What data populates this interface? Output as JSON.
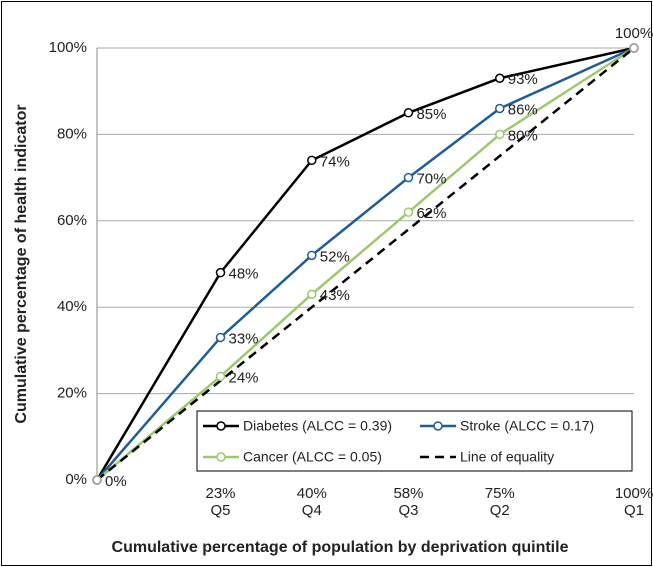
{
  "chart_data": {
    "type": "line",
    "y_label": "Cumulative percentage of health indicator",
    "x_label": "Cumulative percentage of population by deprivation quintile",
    "x": [
      0,
      23,
      40,
      58,
      75,
      100
    ],
    "xlim": [
      0,
      100
    ],
    "xticks": [
      {
        "value": 23,
        "label": "23%"
      },
      {
        "value": 40,
        "label": "40%"
      },
      {
        "value": 58,
        "label": "58%"
      },
      {
        "value": 75,
        "label": "75%"
      },
      {
        "value": 100,
        "label": "100%"
      }
    ],
    "xtick_groups": [
      "Q5",
      "Q4",
      "Q3",
      "Q2",
      "Q1"
    ],
    "ylim": [
      0,
      100
    ],
    "yticks": [
      {
        "value": 0,
        "label": "0%"
      },
      {
        "value": 20,
        "label": "20%"
      },
      {
        "value": 40,
        "label": "40%"
      },
      {
        "value": 60,
        "label": "60%"
      },
      {
        "value": 80,
        "label": "80%"
      },
      {
        "value": 100,
        "label": "100%"
      }
    ],
    "grid": "y",
    "legend": "lower right",
    "series": [
      {
        "name": "Diabetes (ALCC = 0.39)",
        "color": "#000000",
        "values": [
          0,
          48,
          74,
          85,
          93,
          100
        ],
        "value_labels": [
          "0%",
          "48%",
          "74%",
          "85%",
          "93%",
          "100%"
        ]
      },
      {
        "name": "Stroke (ALCC = 0.17)",
        "color": "#1f5c99",
        "values": [
          0,
          33,
          52,
          70,
          86,
          100
        ],
        "value_labels": [
          null,
          "33%",
          "52%",
          "70%",
          "86%",
          null
        ]
      },
      {
        "name": "Cancer (ALCC = 0.05)",
        "color": "#9cc96b",
        "values": [
          0,
          24,
          43,
          62,
          80,
          100
        ],
        "value_labels": [
          null,
          "24%",
          "43%",
          "62%",
          "80%",
          null
        ]
      },
      {
        "name": "Line of equality",
        "color": "#000000",
        "dash": true,
        "values": [
          0,
          23,
          40,
          58,
          75,
          100
        ]
      }
    ]
  }
}
